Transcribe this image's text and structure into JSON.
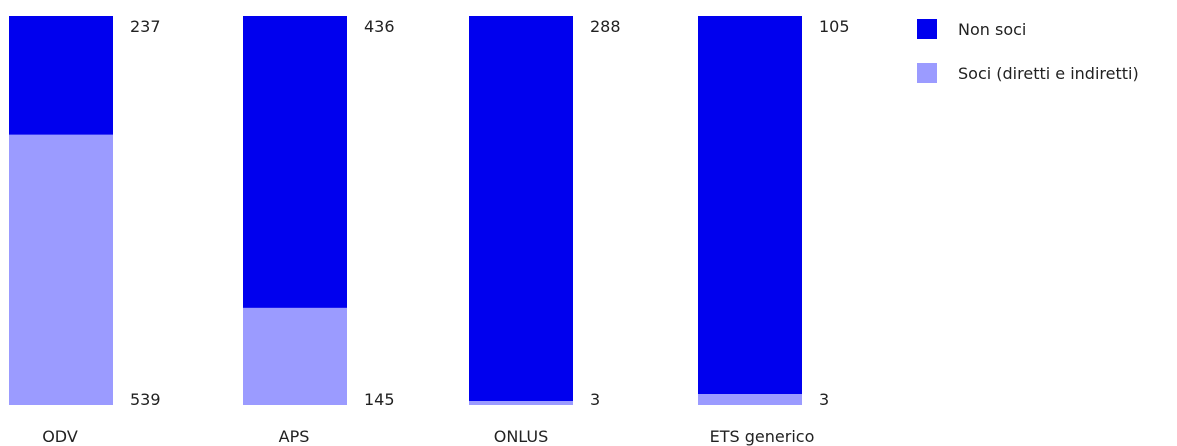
{
  "chart_data": {
    "type": "bar",
    "stacked": "100%",
    "categories": [
      "ODV",
      "APS",
      "ONLUS",
      "ETS generico"
    ],
    "series": [
      {
        "name": "Soci (diretti e indiretti)",
        "values": [
          539,
          145,
          3,
          3
        ],
        "color": "#9b9bff"
      },
      {
        "name": "Non soci",
        "values": [
          237,
          436,
          288,
          105
        ],
        "color": "#0000ee"
      }
    ],
    "legend_placement": "right",
    "grid": false
  }
}
